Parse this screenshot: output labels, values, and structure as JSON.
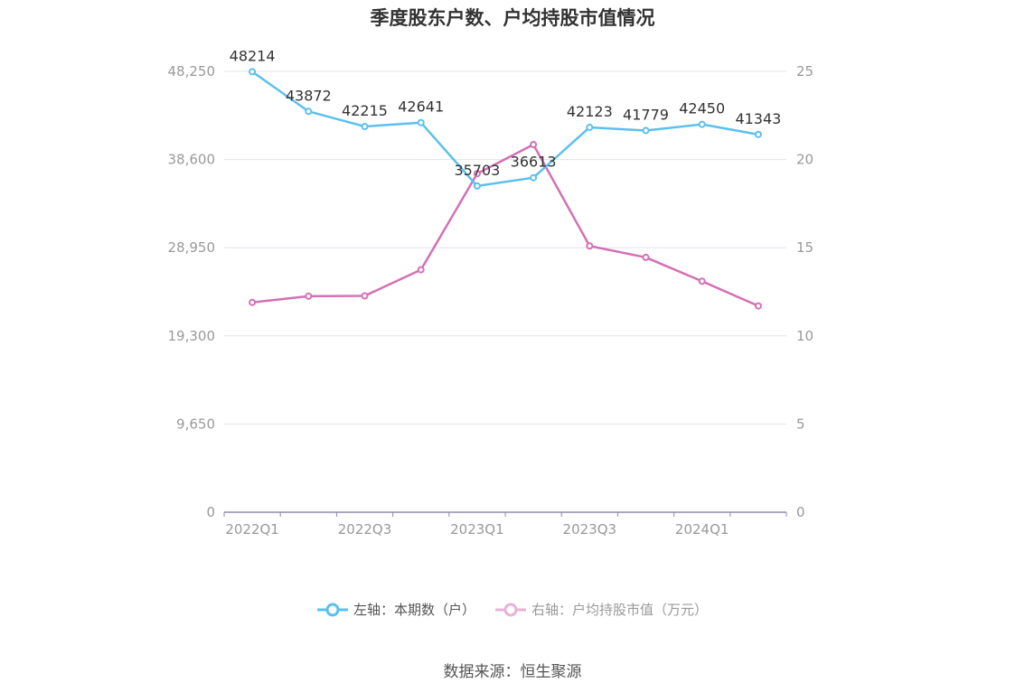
{
  "chart_data": {
    "type": "line",
    "title": "季度股东户数、户均持股市值情况",
    "categories": [
      "2022Q1",
      "2022Q2",
      "2022Q3",
      "2022Q4",
      "2023Q1",
      "2023Q2",
      "2023Q3",
      "2023Q4",
      "2024Q1",
      "2024Q2"
    ],
    "x_tick_labels": [
      "2022Q1",
      "2022Q3",
      "2023Q1",
      "2023Q3",
      "2024Q1"
    ],
    "left_axis": {
      "range": [
        0,
        48250
      ],
      "ticks": [
        "0",
        "9,650",
        "19,300",
        "28,950",
        "38,600",
        "48,250"
      ]
    },
    "right_axis": {
      "range": [
        0,
        25
      ],
      "ticks": [
        "0",
        "5",
        "10",
        "15",
        "20",
        "25"
      ]
    },
    "series": [
      {
        "name": "左轴：本期数（户）",
        "axis": "left",
        "color": "#5bc0ed",
        "values": [
          48214,
          43872,
          42215,
          42641,
          35703,
          36613,
          42123,
          41779,
          42450,
          41343
        ],
        "labels": [
          "48214",
          "43872",
          "42215",
          "42641",
          "35703",
          "36613",
          "42123",
          "41779",
          "42450",
          "41343"
        ]
      },
      {
        "name": "右轴：户均持股市值（万元）",
        "axis": "right",
        "color": "#d470b4",
        "values": [
          11.9,
          12.25,
          12.27,
          13.75,
          19.2,
          20.85,
          15.1,
          14.45,
          13.1,
          11.7
        ]
      }
    ],
    "grid": true,
    "legend_position": "bottom"
  },
  "legend": {
    "left_label": "左轴：本期数（户）",
    "right_label": "右轴：户均持股市值（万元）"
  },
  "source": "数据来源：恒生聚源",
  "colors": {
    "grid": "#e0e4ee",
    "axis": "#8c8ca8",
    "tick_text": "#999999",
    "label_text": "#333333"
  }
}
